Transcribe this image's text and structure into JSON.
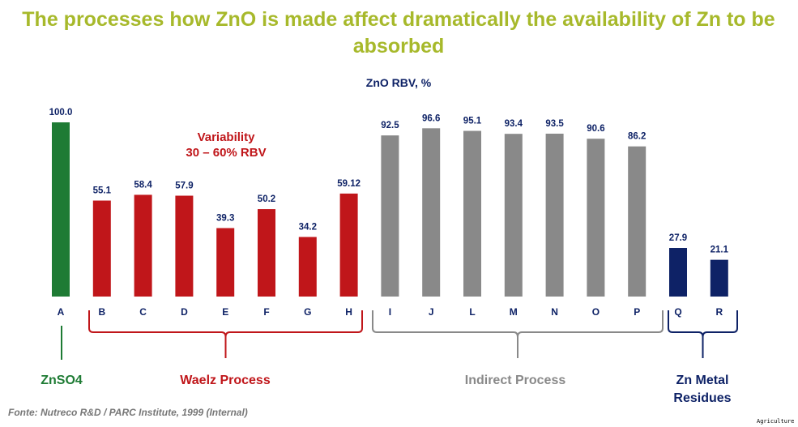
{
  "title_line1": "The processes how  ZnO is made affect dramatically the availability of Zn to be",
  "title_line2": "absorbed",
  "footer": "Fonte: Nutreco R&D / PARC Institute, 1999 (Internal)",
  "watermark": "Agriculture",
  "colors": {
    "title": "#a7b92b",
    "ZnSO4": "#1e7b34",
    "Waelz": "#c0161a",
    "Indirect": "#898989",
    "ZnMetal": "#0e2266"
  },
  "chart_data": {
    "type": "bar",
    "title": "ZnO RBV, %",
    "categories": [
      "A",
      "B",
      "C",
      "D",
      "E",
      "F",
      "G",
      "H",
      "I",
      "J",
      "L",
      "M",
      "N",
      "O",
      "P",
      "Q",
      "R"
    ],
    "values": [
      100.0,
      55.1,
      58.4,
      57.9,
      39.3,
      50.2,
      34.2,
      59.12,
      92.5,
      96.6,
      95.1,
      93.4,
      93.5,
      90.6,
      86.2,
      27.9,
      21.1
    ],
    "value_labels": [
      "100.0",
      "55.1",
      "58.4",
      "57.9",
      "39.3",
      "50.2",
      "34.2",
      "59.12",
      "92.5",
      "96.6",
      "95.1",
      "93.4",
      "93.5",
      "90.6",
      "86.2",
      "27.9",
      "21.1"
    ],
    "groups": [
      {
        "name": "ZnSO4",
        "categories": [
          "A"
        ],
        "color": "#1e7b34"
      },
      {
        "name": "Waelz Process",
        "categories": [
          "B",
          "C",
          "D",
          "E",
          "F",
          "G",
          "H"
        ],
        "color": "#c0161a"
      },
      {
        "name": "Indirect Process",
        "categories": [
          "I",
          "J",
          "L",
          "M",
          "N",
          "O",
          "P"
        ],
        "color": "#898989"
      },
      {
        "name_line1": "Zn Metal",
        "name_line2": "Residues",
        "categories": [
          "Q",
          "R"
        ],
        "color": "#0e2266"
      }
    ],
    "annotation_line1": "Variability",
    "annotation_line2": "30 – 60% RBV",
    "ylim": [
      0,
      100
    ],
    "grid": false
  }
}
